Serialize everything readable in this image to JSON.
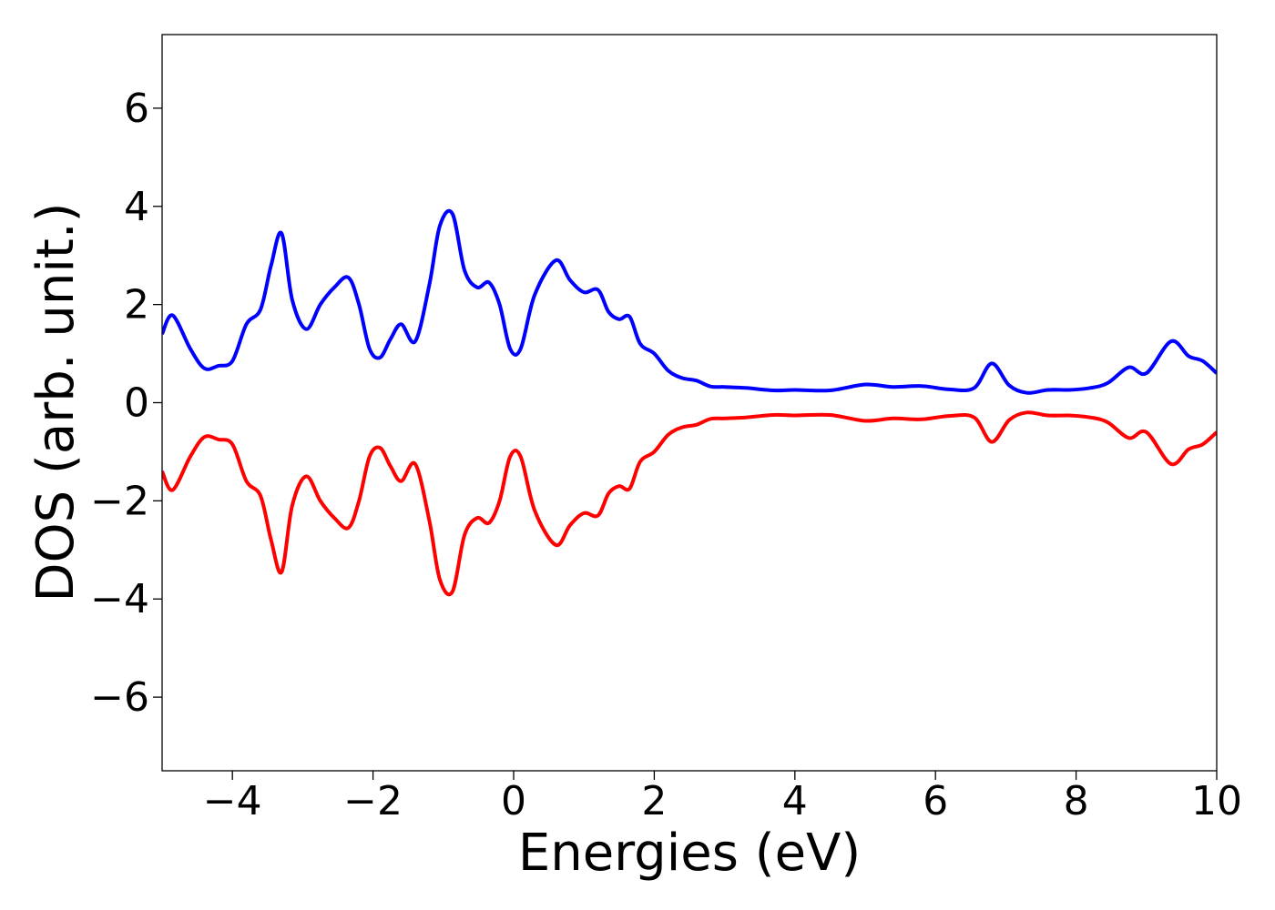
{
  "chart_data": {
    "type": "line",
    "xlabel": "Energies (eV)",
    "ylabel": "DOS (arb. unit.)",
    "xlim": [
      -5,
      10
    ],
    "ylim": [
      -7.5,
      7.5
    ],
    "xticks": [
      -4,
      -2,
      0,
      2,
      4,
      6,
      8,
      10
    ],
    "xtick_labels": [
      "−4",
      "−2",
      "0",
      "2",
      "4",
      "6",
      "8",
      "10"
    ],
    "yticks": [
      -6,
      -4,
      -2,
      0,
      2,
      4,
      6
    ],
    "ytick_labels": [
      "−6",
      "−4",
      "−2",
      "0",
      "2",
      "4",
      "6"
    ],
    "grid": false,
    "legend": "none",
    "series": [
      {
        "color": "#0000ff",
        "x": [
          -5.0,
          -4.85,
          -4.6,
          -4.4,
          -4.2,
          -4.0,
          -3.8,
          -3.6,
          -3.45,
          -3.3,
          -3.15,
          -2.95,
          -2.75,
          -2.55,
          -2.35,
          -2.2,
          -2.05,
          -1.9,
          -1.75,
          -1.6,
          -1.4,
          -1.2,
          -1.05,
          -0.87,
          -0.7,
          -0.52,
          -0.35,
          -0.2,
          -0.05,
          0.1,
          0.3,
          0.6,
          0.8,
          1.0,
          1.2,
          1.35,
          1.5,
          1.65,
          1.8,
          2.0,
          2.2,
          2.4,
          2.6,
          2.8,
          3.0,
          3.3,
          3.7,
          4.0,
          4.5,
          5.0,
          5.4,
          5.8,
          6.2,
          6.55,
          6.8,
          7.05,
          7.3,
          7.6,
          7.9,
          8.2,
          8.45,
          8.75,
          9.0,
          9.35,
          9.6,
          9.8,
          10.0
        ],
        "values": [
          1.4,
          1.78,
          1.1,
          0.7,
          0.75,
          0.85,
          1.6,
          1.9,
          2.8,
          3.45,
          2.1,
          1.5,
          2.0,
          2.35,
          2.55,
          2.0,
          1.1,
          0.92,
          1.3,
          1.6,
          1.25,
          2.4,
          3.6,
          3.85,
          2.7,
          2.35,
          2.45,
          2.0,
          1.1,
          1.1,
          2.2,
          2.9,
          2.5,
          2.25,
          2.3,
          1.85,
          1.7,
          1.75,
          1.2,
          1.0,
          0.65,
          0.5,
          0.45,
          0.33,
          0.32,
          0.3,
          0.25,
          0.26,
          0.25,
          0.37,
          0.32,
          0.34,
          0.27,
          0.3,
          0.8,
          0.35,
          0.2,
          0.26,
          0.26,
          0.3,
          0.4,
          0.72,
          0.6,
          1.25,
          0.95,
          0.85,
          0.6
        ]
      },
      {
        "color": "#ff0000",
        "x": [
          -5.0,
          -4.85,
          -4.6,
          -4.4,
          -4.2,
          -4.0,
          -3.8,
          -3.6,
          -3.45,
          -3.3,
          -3.15,
          -2.95,
          -2.75,
          -2.55,
          -2.35,
          -2.2,
          -2.05,
          -1.9,
          -1.75,
          -1.6,
          -1.4,
          -1.2,
          -1.05,
          -0.87,
          -0.7,
          -0.52,
          -0.35,
          -0.2,
          -0.05,
          0.1,
          0.3,
          0.6,
          0.8,
          1.0,
          1.2,
          1.35,
          1.5,
          1.65,
          1.8,
          2.0,
          2.2,
          2.4,
          2.6,
          2.8,
          3.0,
          3.3,
          3.7,
          4.0,
          4.5,
          5.0,
          5.4,
          5.8,
          6.2,
          6.55,
          6.8,
          7.05,
          7.3,
          7.6,
          7.9,
          8.2,
          8.45,
          8.75,
          9.0,
          9.35,
          9.6,
          9.8,
          10.0
        ],
        "values": [
          -1.4,
          -1.78,
          -1.1,
          -0.7,
          -0.75,
          -0.85,
          -1.6,
          -1.9,
          -2.8,
          -3.45,
          -2.1,
          -1.5,
          -2.0,
          -2.35,
          -2.55,
          -2.0,
          -1.1,
          -0.92,
          -1.3,
          -1.6,
          -1.25,
          -2.4,
          -3.6,
          -3.85,
          -2.7,
          -2.35,
          -2.45,
          -2.0,
          -1.1,
          -1.1,
          -2.2,
          -2.9,
          -2.5,
          -2.25,
          -2.3,
          -1.85,
          -1.7,
          -1.75,
          -1.2,
          -1.0,
          -0.65,
          -0.5,
          -0.45,
          -0.33,
          -0.32,
          -0.3,
          -0.25,
          -0.26,
          -0.25,
          -0.37,
          -0.32,
          -0.34,
          -0.27,
          -0.3,
          -0.8,
          -0.35,
          -0.2,
          -0.26,
          -0.26,
          -0.3,
          -0.4,
          -0.72,
          -0.6,
          -1.25,
          -0.95,
          -0.85,
          -0.6
        ]
      }
    ]
  }
}
